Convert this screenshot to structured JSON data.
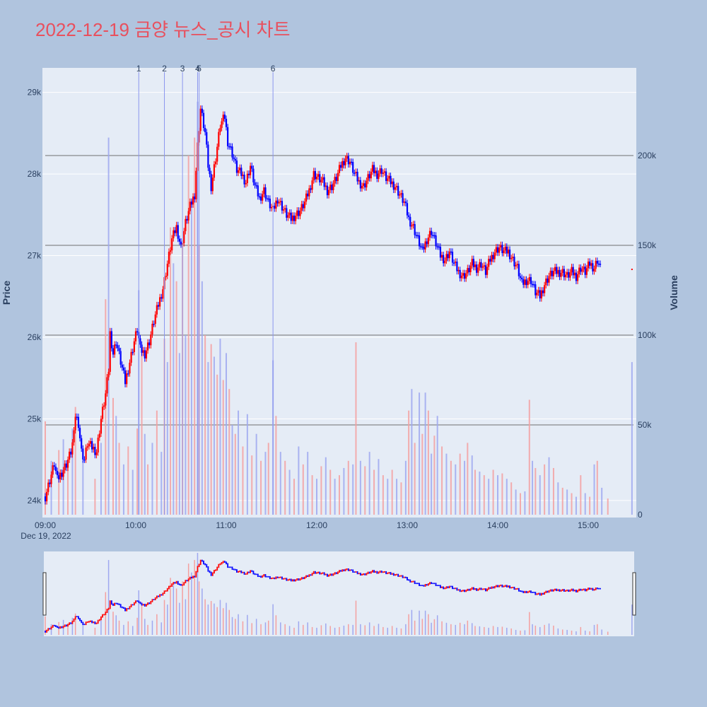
{
  "title": "2022-12-19 금양 뉴스_공시 차트",
  "colors": {
    "background": "#b0c4de",
    "plot_bg": "#e5ecf6",
    "up": "#ff0000",
    "down": "#0000ff",
    "title": "#e8505e"
  },
  "chart_data": {
    "type": "candlestick+bar",
    "ylabel_left": "Price",
    "ylabel_right": "Volume",
    "x_tick_labels": [
      "09:00",
      "10:00",
      "11:00",
      "12:00",
      "13:00",
      "14:00",
      "15:00"
    ],
    "x_date_label": "Dec 19, 2022",
    "price_ticks": [
      "24k",
      "25k",
      "26k",
      "27k",
      "28k",
      "29k"
    ],
    "price_tick_values": [
      24000,
      25000,
      26000,
      27000,
      28000,
      29000
    ],
    "volume_ticks": [
      "0",
      "50k",
      "100k",
      "150k",
      "200k"
    ],
    "volume_tick_values": [
      0,
      50000,
      100000,
      150000,
      200000
    ],
    "price_range": [
      23800,
      29300
    ],
    "volume_range": [
      0,
      230000
    ],
    "time_range_minutes": [
      0,
      390
    ],
    "news_markers": [
      {
        "label": "1",
        "minute": 62
      },
      {
        "label": "2",
        "minute": 79
      },
      {
        "label": "3",
        "minute": 91
      },
      {
        "label": "4",
        "minute": 101
      },
      {
        "label": "5",
        "minute": 102
      },
      {
        "label": "6",
        "minute": 151
      }
    ],
    "price_path": [
      [
        0,
        24050
      ],
      [
        3,
        24250
      ],
      [
        6,
        24450
      ],
      [
        8,
        24250
      ],
      [
        11,
        24350
      ],
      [
        14,
        24450
      ],
      [
        17,
        24600
      ],
      [
        19,
        24800
      ],
      [
        20,
        25050
      ],
      [
        22,
        24950
      ],
      [
        24,
        24600
      ],
      [
        26,
        24500
      ],
      [
        28,
        24700
      ],
      [
        31,
        24650
      ],
      [
        34,
        24600
      ],
      [
        37,
        25000
      ],
      [
        40,
        25300
      ],
      [
        42,
        25600
      ],
      [
        43,
        26050
      ],
      [
        45,
        25800
      ],
      [
        47,
        25950
      ],
      [
        50,
        25700
      ],
      [
        53,
        25450
      ],
      [
        56,
        25700
      ],
      [
        59,
        25950
      ],
      [
        61,
        26100
      ],
      [
        63,
        25850
      ],
      [
        66,
        25800
      ],
      [
        69,
        25950
      ],
      [
        72,
        26200
      ],
      [
        75,
        26400
      ],
      [
        78,
        26600
      ],
      [
        81,
        26900
      ],
      [
        84,
        27200
      ],
      [
        87,
        27350
      ],
      [
        90,
        27100
      ],
      [
        93,
        27400
      ],
      [
        96,
        27600
      ],
      [
        99,
        27750
      ],
      [
        101,
        28350
      ],
      [
        103,
        28800
      ],
      [
        106,
        28500
      ],
      [
        108,
        28100
      ],
      [
        110,
        27850
      ],
      [
        113,
        28200
      ],
      [
        116,
        28600
      ],
      [
        119,
        28700
      ],
      [
        121,
        28400
      ],
      [
        124,
        28250
      ],
      [
        127,
        28050
      ],
      [
        130,
        28000
      ],
      [
        133,
        27900
      ],
      [
        136,
        28100
      ],
      [
        139,
        27850
      ],
      [
        142,
        27700
      ],
      [
        145,
        27800
      ],
      [
        148,
        27650
      ],
      [
        151,
        27550
      ],
      [
        154,
        27700
      ],
      [
        157,
        27600
      ],
      [
        160,
        27500
      ],
      [
        163,
        27450
      ],
      [
        166,
        27500
      ],
      [
        169,
        27550
      ],
      [
        172,
        27650
      ],
      [
        175,
        27800
      ],
      [
        178,
        28000
      ],
      [
        181,
        27950
      ],
      [
        184,
        27900
      ],
      [
        187,
        27800
      ],
      [
        190,
        27850
      ],
      [
        193,
        27950
      ],
      [
        196,
        28100
      ],
      [
        199,
        28200
      ],
      [
        202,
        28150
      ],
      [
        205,
        28000
      ],
      [
        208,
        27900
      ],
      [
        211,
        27850
      ],
      [
        214,
        27950
      ],
      [
        217,
        28050
      ],
      [
        220,
        28000
      ],
      [
        223,
        28050
      ],
      [
        226,
        27950
      ],
      [
        229,
        27900
      ],
      [
        232,
        27850
      ],
      [
        235,
        27750
      ],
      [
        238,
        27650
      ],
      [
        241,
        27450
      ],
      [
        244,
        27350
      ],
      [
        247,
        27200
      ],
      [
        250,
        27050
      ],
      [
        253,
        27200
      ],
      [
        256,
        27300
      ],
      [
        259,
        27150
      ],
      [
        262,
        27000
      ],
      [
        265,
        26950
      ],
      [
        268,
        27050
      ],
      [
        271,
        26900
      ],
      [
        274,
        26800
      ],
      [
        277,
        26750
      ],
      [
        280,
        26800
      ],
      [
        283,
        26900
      ],
      [
        286,
        26850
      ],
      [
        289,
        26900
      ],
      [
        292,
        26800
      ],
      [
        295,
        26950
      ],
      [
        298,
        27050
      ],
      [
        301,
        27100
      ],
      [
        304,
        27050
      ],
      [
        307,
        27050
      ],
      [
        310,
        26950
      ],
      [
        313,
        26850
      ],
      [
        316,
        26650
      ],
      [
        319,
        26700
      ],
      [
        322,
        26700
      ],
      [
        325,
        26550
      ],
      [
        328,
        26500
      ],
      [
        331,
        26650
      ],
      [
        334,
        26750
      ],
      [
        337,
        26800
      ],
      [
        340,
        26800
      ],
      [
        343,
        26800
      ],
      [
        346,
        26750
      ],
      [
        349,
        26800
      ],
      [
        352,
        26750
      ],
      [
        355,
        26850
      ],
      [
        358,
        26800
      ],
      [
        361,
        26900
      ],
      [
        364,
        26850
      ],
      [
        366,
        26950
      ],
      [
        368,
        26850
      ]
    ],
    "volume_bars": [
      [
        0,
        52000
      ],
      [
        4,
        30000
      ],
      [
        9,
        36000
      ],
      [
        12,
        42000
      ],
      [
        15,
        28000
      ],
      [
        18,
        48000
      ],
      [
        20,
        60000
      ],
      [
        25,
        30000
      ],
      [
        33,
        20000
      ],
      [
        37,
        40000
      ],
      [
        40,
        120000
      ],
      [
        42,
        210000
      ],
      [
        45,
        65000
      ],
      [
        47,
        55000
      ],
      [
        49,
        40000
      ],
      [
        52,
        28000
      ],
      [
        55,
        38000
      ],
      [
        58,
        25000
      ],
      [
        61,
        48000
      ],
      [
        62,
        125000
      ],
      [
        64,
        92000
      ],
      [
        66,
        45000
      ],
      [
        68,
        28000
      ],
      [
        71,
        40000
      ],
      [
        74,
        58000
      ],
      [
        77,
        35000
      ],
      [
        79,
        98000
      ],
      [
        81,
        85000
      ],
      [
        83,
        160000
      ],
      [
        85,
        140000
      ],
      [
        87,
        130000
      ],
      [
        89,
        90000
      ],
      [
        91,
        150000
      ],
      [
        93,
        100000
      ],
      [
        95,
        200000
      ],
      [
        97,
        175000
      ],
      [
        99,
        210000
      ],
      [
        101,
        230000
      ],
      [
        102,
        150000
      ],
      [
        104,
        130000
      ],
      [
        106,
        100000
      ],
      [
        108,
        85000
      ],
      [
        110,
        95000
      ],
      [
        112,
        88000
      ],
      [
        114,
        78000
      ],
      [
        116,
        98000
      ],
      [
        118,
        75000
      ],
      [
        120,
        90000
      ],
      [
        122,
        70000
      ],
      [
        124,
        50000
      ],
      [
        126,
        45000
      ],
      [
        128,
        58000
      ],
      [
        131,
        38000
      ],
      [
        134,
        56000
      ],
      [
        137,
        33000
      ],
      [
        140,
        45000
      ],
      [
        143,
        30000
      ],
      [
        146,
        35000
      ],
      [
        148,
        40000
      ],
      [
        151,
        86000
      ],
      [
        153,
        55000
      ],
      [
        156,
        35000
      ],
      [
        159,
        30000
      ],
      [
        162,
        25000
      ],
      [
        165,
        20000
      ],
      [
        168,
        38000
      ],
      [
        171,
        28000
      ],
      [
        174,
        35000
      ],
      [
        177,
        22000
      ],
      [
        180,
        20000
      ],
      [
        183,
        27000
      ],
      [
        186,
        32000
      ],
      [
        189,
        25000
      ],
      [
        192,
        20000
      ],
      [
        195,
        22000
      ],
      [
        198,
        26000
      ],
      [
        201,
        30000
      ],
      [
        204,
        28000
      ],
      [
        206,
        96000
      ],
      [
        209,
        30000
      ],
      [
        212,
        27000
      ],
      [
        215,
        35000
      ],
      [
        218,
        25000
      ],
      [
        221,
        31000
      ],
      [
        224,
        22000
      ],
      [
        227,
        20000
      ],
      [
        230,
        25000
      ],
      [
        233,
        20000
      ],
      [
        236,
        18000
      ],
      [
        239,
        30000
      ],
      [
        241,
        58000
      ],
      [
        243,
        70000
      ],
      [
        245,
        40000
      ],
      [
        248,
        68000
      ],
      [
        250,
        45000
      ],
      [
        252,
        68000
      ],
      [
        254,
        58000
      ],
      [
        256,
        34000
      ],
      [
        258,
        44000
      ],
      [
        260,
        55000
      ],
      [
        263,
        38000
      ],
      [
        266,
        34000
      ],
      [
        269,
        30000
      ],
      [
        272,
        28000
      ],
      [
        275,
        34000
      ],
      [
        278,
        30000
      ],
      [
        280,
        40000
      ],
      [
        283,
        33000
      ],
      [
        285,
        25000
      ],
      [
        288,
        24000
      ],
      [
        291,
        22000
      ],
      [
        294,
        20000
      ],
      [
        297,
        25000
      ],
      [
        300,
        22000
      ],
      [
        303,
        23000
      ],
      [
        306,
        20000
      ],
      [
        309,
        18000
      ],
      [
        312,
        14000
      ],
      [
        315,
        12000
      ],
      [
        318,
        13000
      ],
      [
        321,
        64000
      ],
      [
        323,
        30000
      ],
      [
        325,
        26000
      ],
      [
        328,
        22000
      ],
      [
        331,
        28000
      ],
      [
        334,
        32000
      ],
      [
        337,
        26000
      ],
      [
        340,
        18000
      ],
      [
        343,
        15000
      ],
      [
        346,
        14000
      ],
      [
        349,
        12000
      ],
      [
        352,
        10000
      ],
      [
        355,
        22000
      ],
      [
        358,
        12000
      ],
      [
        361,
        10000
      ],
      [
        364,
        28000
      ],
      [
        366,
        30000
      ],
      [
        369,
        15000
      ],
      [
        373,
        9000
      ],
      [
        389,
        85000
      ]
    ]
  }
}
